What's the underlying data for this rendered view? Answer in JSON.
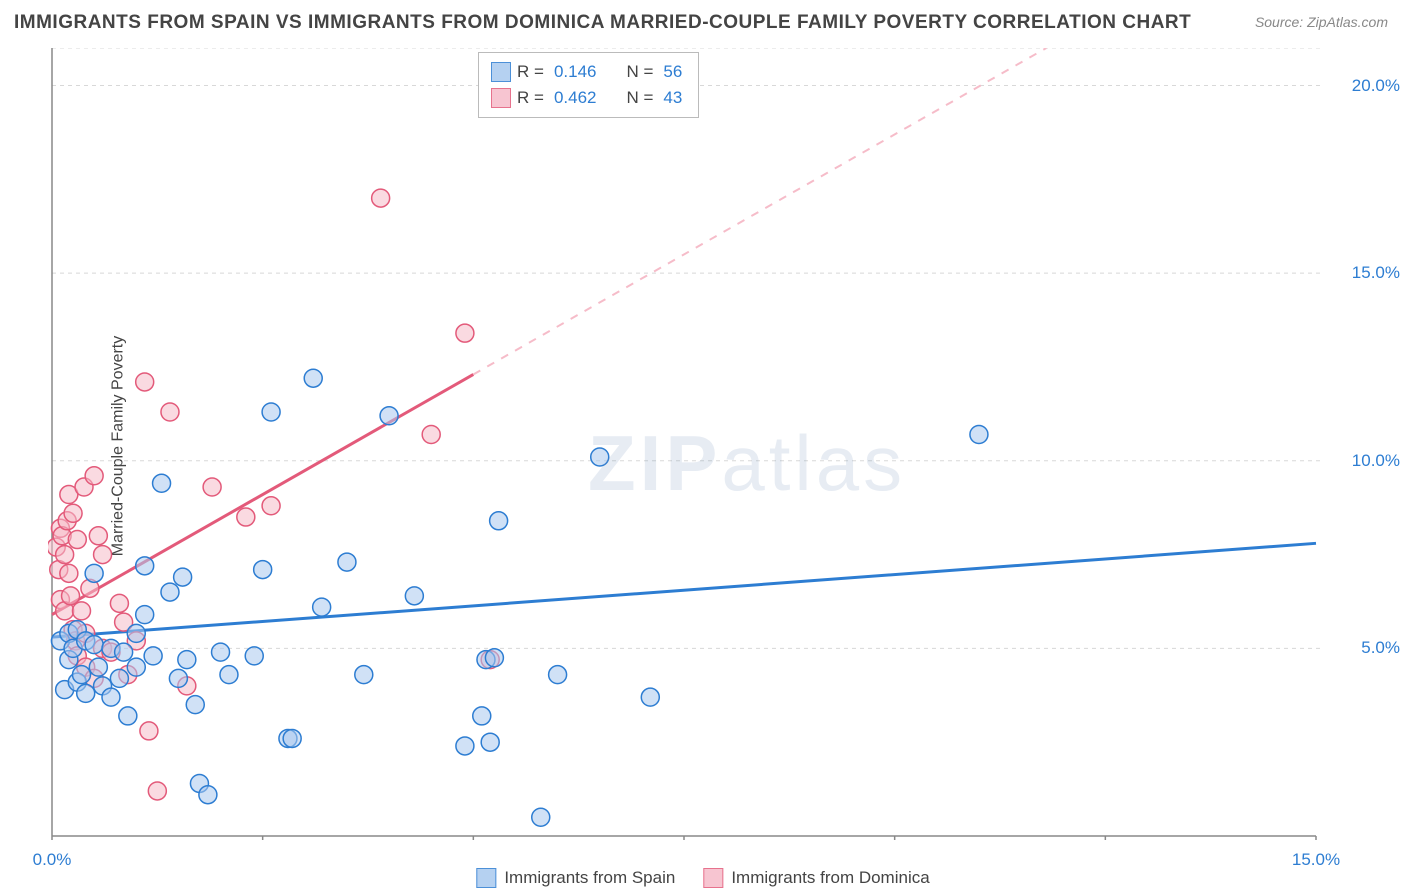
{
  "title": "IMMIGRANTS FROM SPAIN VS IMMIGRANTS FROM DOMINICA MARRIED-COUPLE FAMILY POVERTY CORRELATION CHART",
  "source": "Source: ZipAtlas.com",
  "ylabel": "Married-Couple Family Poverty",
  "watermark": "ZIPatlas",
  "chart": {
    "type": "scatter",
    "xlim": [
      0,
      15
    ],
    "ylim": [
      0,
      21
    ],
    "x_ticks_major": [
      0,
      5,
      10,
      15
    ],
    "x_ticks_minor": [
      2.5,
      7.5,
      12.5
    ],
    "x_tick_labels": [
      "0.0%",
      "15.0%"
    ],
    "x_tick_label_positions": [
      0,
      15
    ],
    "y_ticks": [
      5,
      10,
      15,
      20
    ],
    "y_tick_labels": [
      "5.0%",
      "10.0%",
      "15.0%",
      "20.0%"
    ],
    "grid_color": "#d8d8d8",
    "axis_color": "#888888",
    "background_color": "#ffffff",
    "marker_radius": 9,
    "marker_stroke_width": 1.5,
    "trend_line_width": 3
  },
  "series": {
    "spain": {
      "label": "Immigrants from Spain",
      "fill": "#a9c9ef",
      "stroke": "#2d7dd2",
      "fill_opacity": 0.55,
      "R": "0.146",
      "N": "56",
      "trend": {
        "x1": 0,
        "y1": 5.3,
        "x2": 15,
        "y2": 7.8,
        "color": "#2d7dd2"
      },
      "points": [
        [
          0.1,
          5.2
        ],
        [
          0.15,
          3.9
        ],
        [
          0.2,
          4.7
        ],
        [
          0.2,
          5.4
        ],
        [
          0.25,
          5.0
        ],
        [
          0.3,
          4.1
        ],
        [
          0.3,
          5.5
        ],
        [
          0.35,
          4.3
        ],
        [
          0.4,
          5.2
        ],
        [
          0.4,
          3.8
        ],
        [
          0.5,
          7.0
        ],
        [
          0.5,
          5.1
        ],
        [
          0.55,
          4.5
        ],
        [
          0.6,
          4.0
        ],
        [
          0.7,
          5.0
        ],
        [
          0.7,
          3.7
        ],
        [
          0.8,
          4.2
        ],
        [
          0.85,
          4.9
        ],
        [
          0.9,
          3.2
        ],
        [
          1.0,
          5.4
        ],
        [
          1.0,
          4.5
        ],
        [
          1.1,
          7.2
        ],
        [
          1.1,
          5.9
        ],
        [
          1.2,
          4.8
        ],
        [
          1.3,
          9.4
        ],
        [
          1.4,
          6.5
        ],
        [
          1.5,
          4.2
        ],
        [
          1.55,
          6.9
        ],
        [
          1.6,
          4.7
        ],
        [
          1.7,
          3.5
        ],
        [
          1.75,
          1.4
        ],
        [
          1.85,
          1.1
        ],
        [
          2.0,
          4.9
        ],
        [
          2.1,
          4.3
        ],
        [
          2.4,
          4.8
        ],
        [
          2.5,
          7.1
        ],
        [
          2.6,
          11.3
        ],
        [
          2.8,
          2.6
        ],
        [
          2.85,
          2.6
        ],
        [
          3.1,
          12.2
        ],
        [
          3.2,
          6.1
        ],
        [
          3.5,
          7.3
        ],
        [
          3.7,
          4.3
        ],
        [
          4.0,
          11.2
        ],
        [
          4.3,
          6.4
        ],
        [
          4.9,
          2.4
        ],
        [
          5.1,
          3.2
        ],
        [
          5.15,
          4.7
        ],
        [
          5.2,
          2.5
        ],
        [
          5.3,
          8.4
        ],
        [
          5.8,
          0.5
        ],
        [
          6.0,
          4.3
        ],
        [
          6.5,
          10.1
        ],
        [
          7.1,
          3.7
        ],
        [
          11.0,
          10.7
        ],
        [
          5.25,
          4.75
        ]
      ]
    },
    "dominica": {
      "label": "Immigrants from Dominica",
      "fill": "#f6bcc9",
      "stroke": "#e35a7a",
      "fill_opacity": 0.55,
      "R": "0.462",
      "N": "43",
      "trend_solid": {
        "x1": 0,
        "y1": 5.9,
        "x2": 5.0,
        "y2": 12.3,
        "color": "#e35a7a"
      },
      "trend_dash": {
        "x1": 5.0,
        "y1": 12.3,
        "x2": 11.8,
        "y2": 21.0,
        "color": "#f6bcc9"
      },
      "points": [
        [
          0.05,
          7.7
        ],
        [
          0.08,
          7.1
        ],
        [
          0.1,
          8.2
        ],
        [
          0.1,
          6.3
        ],
        [
          0.12,
          8.0
        ],
        [
          0.15,
          7.5
        ],
        [
          0.15,
          6.0
        ],
        [
          0.18,
          8.4
        ],
        [
          0.2,
          9.1
        ],
        [
          0.2,
          7.0
        ],
        [
          0.22,
          6.4
        ],
        [
          0.25,
          5.5
        ],
        [
          0.25,
          8.6
        ],
        [
          0.28,
          5.2
        ],
        [
          0.3,
          7.9
        ],
        [
          0.3,
          4.8
        ],
        [
          0.35,
          6.0
        ],
        [
          0.38,
          9.3
        ],
        [
          0.4,
          5.4
        ],
        [
          0.4,
          4.5
        ],
        [
          0.45,
          6.6
        ],
        [
          0.5,
          9.6
        ],
        [
          0.5,
          4.2
        ],
        [
          0.55,
          8.0
        ],
        [
          0.6,
          5.0
        ],
        [
          0.6,
          7.5
        ],
        [
          0.7,
          4.9
        ],
        [
          0.8,
          6.2
        ],
        [
          0.85,
          5.7
        ],
        [
          0.9,
          4.3
        ],
        [
          1.0,
          5.2
        ],
        [
          1.1,
          12.1
        ],
        [
          1.15,
          2.8
        ],
        [
          1.25,
          1.2
        ],
        [
          1.4,
          11.3
        ],
        [
          1.6,
          4.0
        ],
        [
          1.9,
          9.3
        ],
        [
          2.3,
          8.5
        ],
        [
          2.6,
          8.8
        ],
        [
          3.9,
          17.0
        ],
        [
          4.5,
          10.7
        ],
        [
          4.9,
          13.4
        ],
        [
          5.2,
          4.7
        ]
      ]
    }
  },
  "stats_box": {
    "rows": [
      {
        "series": "spain",
        "R_label": "R  =",
        "N_label": "N  ="
      },
      {
        "series": "dominica",
        "R_label": "R  =",
        "N_label": "N  ="
      }
    ]
  }
}
